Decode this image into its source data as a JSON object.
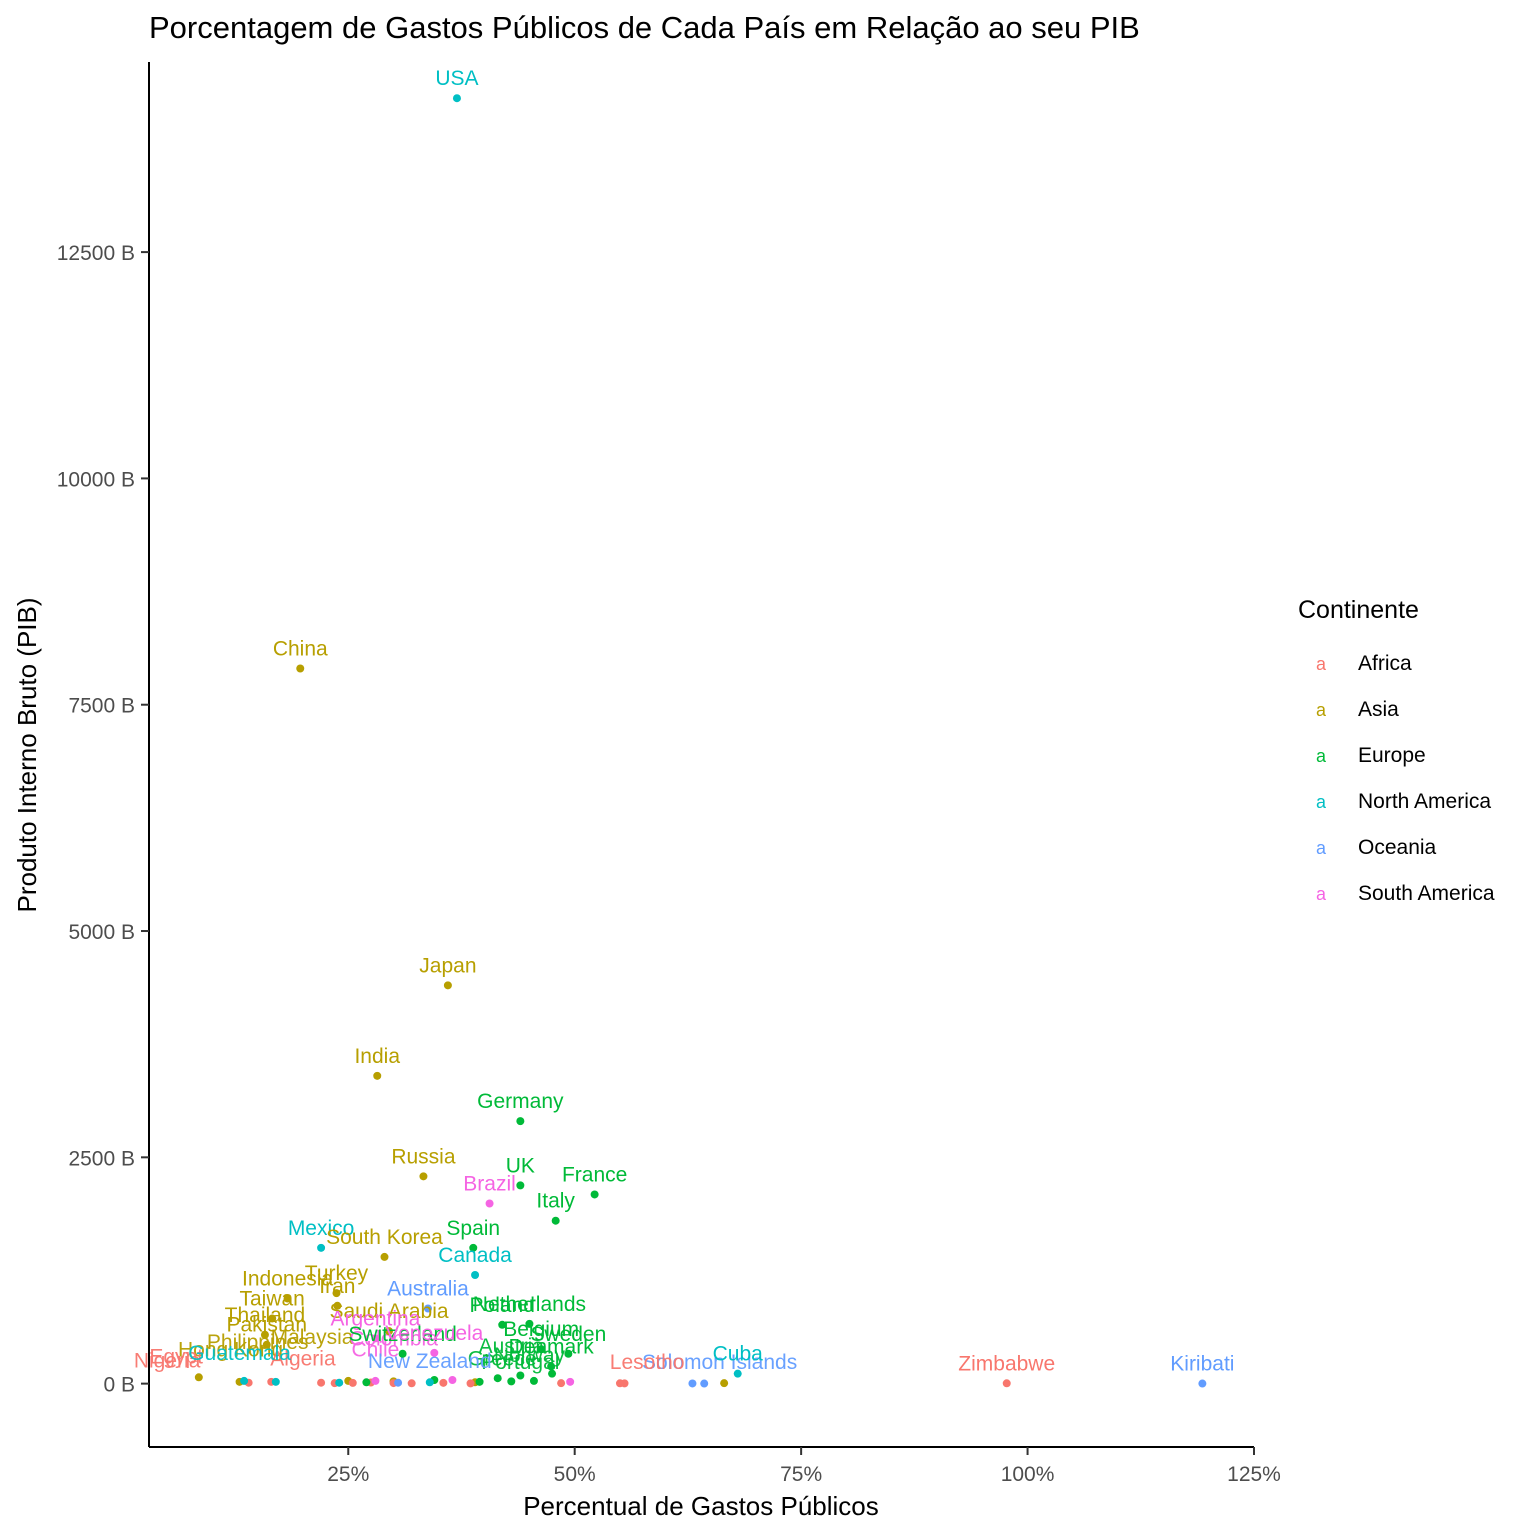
{
  "chart_data": {
    "type": "scatter",
    "title": "Porcentagem de Gastos Públicos de Cada País em Relação ao seu PIB",
    "xlabel": "Percentual de Gastos Públicos",
    "ylabel": "Produto Interno Bruto (PIB)",
    "xlim": [
      0.03,
      1.25
    ],
    "ylim": [
      -700,
      14600
    ],
    "xticks": [
      {
        "value": 0.25,
        "label": "25%"
      },
      {
        "value": 0.5,
        "label": "50%"
      },
      {
        "value": 0.75,
        "label": "75%"
      },
      {
        "value": 1.0,
        "label": "100%"
      },
      {
        "value": 1.25,
        "label": "125%"
      }
    ],
    "yticks": [
      {
        "value": 0,
        "label": "0 B"
      },
      {
        "value": 2500,
        "label": "2500 B"
      },
      {
        "value": 5000,
        "label": "5000 B"
      },
      {
        "value": 7500,
        "label": "7500 B"
      },
      {
        "value": 10000,
        "label": "10000 B"
      },
      {
        "value": 12500,
        "label": "12500 B"
      }
    ],
    "grid": false,
    "legend": {
      "title": "Continente",
      "position": "right",
      "key_glyph": "a",
      "entries": [
        {
          "name": "Africa",
          "color": "#F8766D"
        },
        {
          "name": "Asia",
          "color": "#B79F00"
        },
        {
          "name": "Europe",
          "color": "#00BA38"
        },
        {
          "name": "North America",
          "color": "#00BFC4"
        },
        {
          "name": "Oceania",
          "color": "#619CFF"
        },
        {
          "name": "South America",
          "color": "#F564E3"
        }
      ]
    },
    "points": [
      {
        "label": "USA",
        "continent": "North America",
        "x": 0.37,
        "y": 14200
      },
      {
        "label": "China",
        "continent": "Asia",
        "x": 0.197,
        "y": 7900
      },
      {
        "label": "Japan",
        "continent": "Asia",
        "x": 0.36,
        "y": 4400
      },
      {
        "label": "India",
        "continent": "Asia",
        "x": 0.282,
        "y": 3400
      },
      {
        "label": "Germany",
        "continent": "Europe",
        "x": 0.44,
        "y": 2900
      },
      {
        "label": "Russia",
        "continent": "Asia",
        "x": 0.333,
        "y": 2290
      },
      {
        "label": "UK",
        "continent": "Europe",
        "x": 0.44,
        "y": 2190
      },
      {
        "label": "France",
        "continent": "Europe",
        "x": 0.522,
        "y": 2090
      },
      {
        "label": "Brazil",
        "continent": "South America",
        "x": 0.406,
        "y": 1990
      },
      {
        "label": "Italy",
        "continent": "Europe",
        "x": 0.479,
        "y": 1800
      },
      {
        "label": "Mexico",
        "continent": "North America",
        "x": 0.22,
        "y": 1500
      },
      {
        "label": "Spain",
        "continent": "Europe",
        "x": 0.388,
        "y": 1500
      },
      {
        "label": "South Korea",
        "continent": "Asia",
        "x": 0.29,
        "y": 1400
      },
      {
        "label": "Canada",
        "continent": "North America",
        "x": 0.39,
        "y": 1200
      },
      {
        "label": "Turkey",
        "continent": "Asia",
        "x": 0.237,
        "y": 1000
      },
      {
        "label": "Indonesia",
        "continent": "Asia",
        "x": 0.183,
        "y": 940
      },
      {
        "label": "Iran",
        "continent": "Asia",
        "x": 0.238,
        "y": 860
      },
      {
        "label": "Taiwan",
        "continent": "Asia",
        "x": 0.166,
        "y": 720
      },
      {
        "label": "Australia",
        "continent": "Oceania",
        "x": 0.338,
        "y": 830
      },
      {
        "label": "Poland",
        "continent": "Europe",
        "x": 0.42,
        "y": 650
      },
      {
        "label": "Netherlands",
        "continent": "Europe",
        "x": 0.45,
        "y": 660
      },
      {
        "label": "Saudi Arabia",
        "continent": "Asia",
        "x": 0.295,
        "y": 580
      },
      {
        "label": "Thailand",
        "continent": "Asia",
        "x": 0.158,
        "y": 540
      },
      {
        "label": "Argentina",
        "continent": "South America",
        "x": 0.28,
        "y": 500
      },
      {
        "label": "Pakistan",
        "continent": "Asia",
        "x": 0.16,
        "y": 430
      },
      {
        "label": "Belgium",
        "continent": "Europe",
        "x": 0.463,
        "y": 380
      },
      {
        "label": "Sweden",
        "continent": "Europe",
        "x": 0.493,
        "y": 330
      },
      {
        "label": "Switzerland",
        "continent": "Europe",
        "x": 0.31,
        "y": 330
      },
      {
        "label": "Venezuela",
        "continent": "South America",
        "x": 0.345,
        "y": 340
      },
      {
        "label": "Denmark",
        "continent": "Europe",
        "x": 0.474,
        "y": 190
      },
      {
        "label": "Cuba",
        "continent": "North America",
        "x": 0.68,
        "y": 110
      },
      {
        "label": "Zimbabwe",
        "continent": "Africa",
        "x": 0.977,
        "y": 4
      },
      {
        "label": "Kiribati",
        "continent": "Oceania",
        "x": 1.193,
        "y": 1
      }
    ],
    "extra_points": [
      {
        "continent": "Asia",
        "x": 0.085,
        "y": 70
      },
      {
        "continent": "Asia",
        "x": 0.13,
        "y": 20
      },
      {
        "continent": "Asia",
        "x": 0.25,
        "y": 30
      },
      {
        "continent": "Asia",
        "x": 0.3,
        "y": 25
      },
      {
        "continent": "Asia",
        "x": 0.39,
        "y": 15
      },
      {
        "continent": "Asia",
        "x": 0.665,
        "y": 5
      },
      {
        "continent": "Africa",
        "x": 0.14,
        "y": 10
      },
      {
        "continent": "Africa",
        "x": 0.165,
        "y": 20
      },
      {
        "continent": "Africa",
        "x": 0.22,
        "y": 10
      },
      {
        "continent": "Africa",
        "x": 0.235,
        "y": 5
      },
      {
        "continent": "Africa",
        "x": 0.255,
        "y": 8
      },
      {
        "continent": "Africa",
        "x": 0.275,
        "y": 12
      },
      {
        "continent": "Africa",
        "x": 0.3,
        "y": 6
      },
      {
        "continent": "Africa",
        "x": 0.32,
        "y": 4
      },
      {
        "continent": "Africa",
        "x": 0.355,
        "y": 9
      },
      {
        "continent": "Africa",
        "x": 0.385,
        "y": 3
      },
      {
        "continent": "Africa",
        "x": 0.485,
        "y": 5
      },
      {
        "continent": "Africa",
        "x": 0.55,
        "y": 4
      },
      {
        "continent": "Africa",
        "x": 0.555,
        "y": 3
      },
      {
        "continent": "Europe",
        "x": 0.27,
        "y": 15
      },
      {
        "continent": "Europe",
        "x": 0.345,
        "y": 40
      },
      {
        "continent": "Europe",
        "x": 0.395,
        "y": 20
      },
      {
        "continent": "Europe",
        "x": 0.415,
        "y": 60
      },
      {
        "continent": "Europe",
        "x": 0.43,
        "y": 25
      },
      {
        "continent": "Europe",
        "x": 0.44,
        "y": 90
      },
      {
        "continent": "Europe",
        "x": 0.455,
        "y": 30
      },
      {
        "continent": "Europe",
        "x": 0.475,
        "y": 110
      },
      {
        "continent": "North America",
        "x": 0.135,
        "y": 30
      },
      {
        "continent": "North America",
        "x": 0.17,
        "y": 20
      },
      {
        "continent": "North America",
        "x": 0.24,
        "y": 10
      },
      {
        "continent": "North America",
        "x": 0.34,
        "y": 15
      },
      {
        "continent": "Oceania",
        "x": 0.305,
        "y": 10
      },
      {
        "continent": "Oceania",
        "x": 0.63,
        "y": 2
      },
      {
        "continent": "Oceania",
        "x": 0.643,
        "y": 1
      },
      {
        "continent": "South America",
        "x": 0.28,
        "y": 30
      },
      {
        "continent": "South America",
        "x": 0.365,
        "y": 40
      },
      {
        "continent": "South America",
        "x": 0.495,
        "y": 20
      }
    ],
    "overlapping_label_clusters": [
      {
        "continent": "Asia",
        "text": "Philippines",
        "x": 0.15,
        "y": 380
      },
      {
        "continent": "Asia",
        "text": "Malaysia",
        "x": 0.21,
        "y": 440
      },
      {
        "continent": "Asia",
        "text": "Hong Kong",
        "x": 0.12,
        "y": 300
      },
      {
        "continent": "Africa",
        "text": "Egypt",
        "x": 0.06,
        "y": 220
      },
      {
        "continent": "Africa",
        "text": "Nigeria",
        "x": 0.05,
        "y": 180
      },
      {
        "continent": "Africa",
        "text": "Algeria",
        "x": 0.2,
        "y": 200
      },
      {
        "continent": "North America",
        "text": "Guatemala",
        "x": 0.13,
        "y": 260
      },
      {
        "continent": "Europe",
        "text": "Austria",
        "x": 0.43,
        "y": 340
      },
      {
        "continent": "Europe",
        "text": "Norway",
        "x": 0.45,
        "y": 240
      },
      {
        "continent": "Europe",
        "text": "Greece",
        "x": 0.42,
        "y": 200
      },
      {
        "continent": "Europe",
        "text": "Portugal",
        "x": 0.44,
        "y": 160
      },
      {
        "continent": "South America",
        "text": "Colombia",
        "x": 0.3,
        "y": 420
      },
      {
        "continent": "South America",
        "text": "Chile",
        "x": 0.28,
        "y": 300
      },
      {
        "continent": "Oceania",
        "text": "New Zealand",
        "x": 0.34,
        "y": 170
      },
      {
        "continent": "Oceania",
        "text": "Solomon Islands",
        "x": 0.66,
        "y": 160
      },
      {
        "continent": "Africa",
        "text": "Lesotho",
        "x": 0.58,
        "y": 160
      }
    ]
  }
}
